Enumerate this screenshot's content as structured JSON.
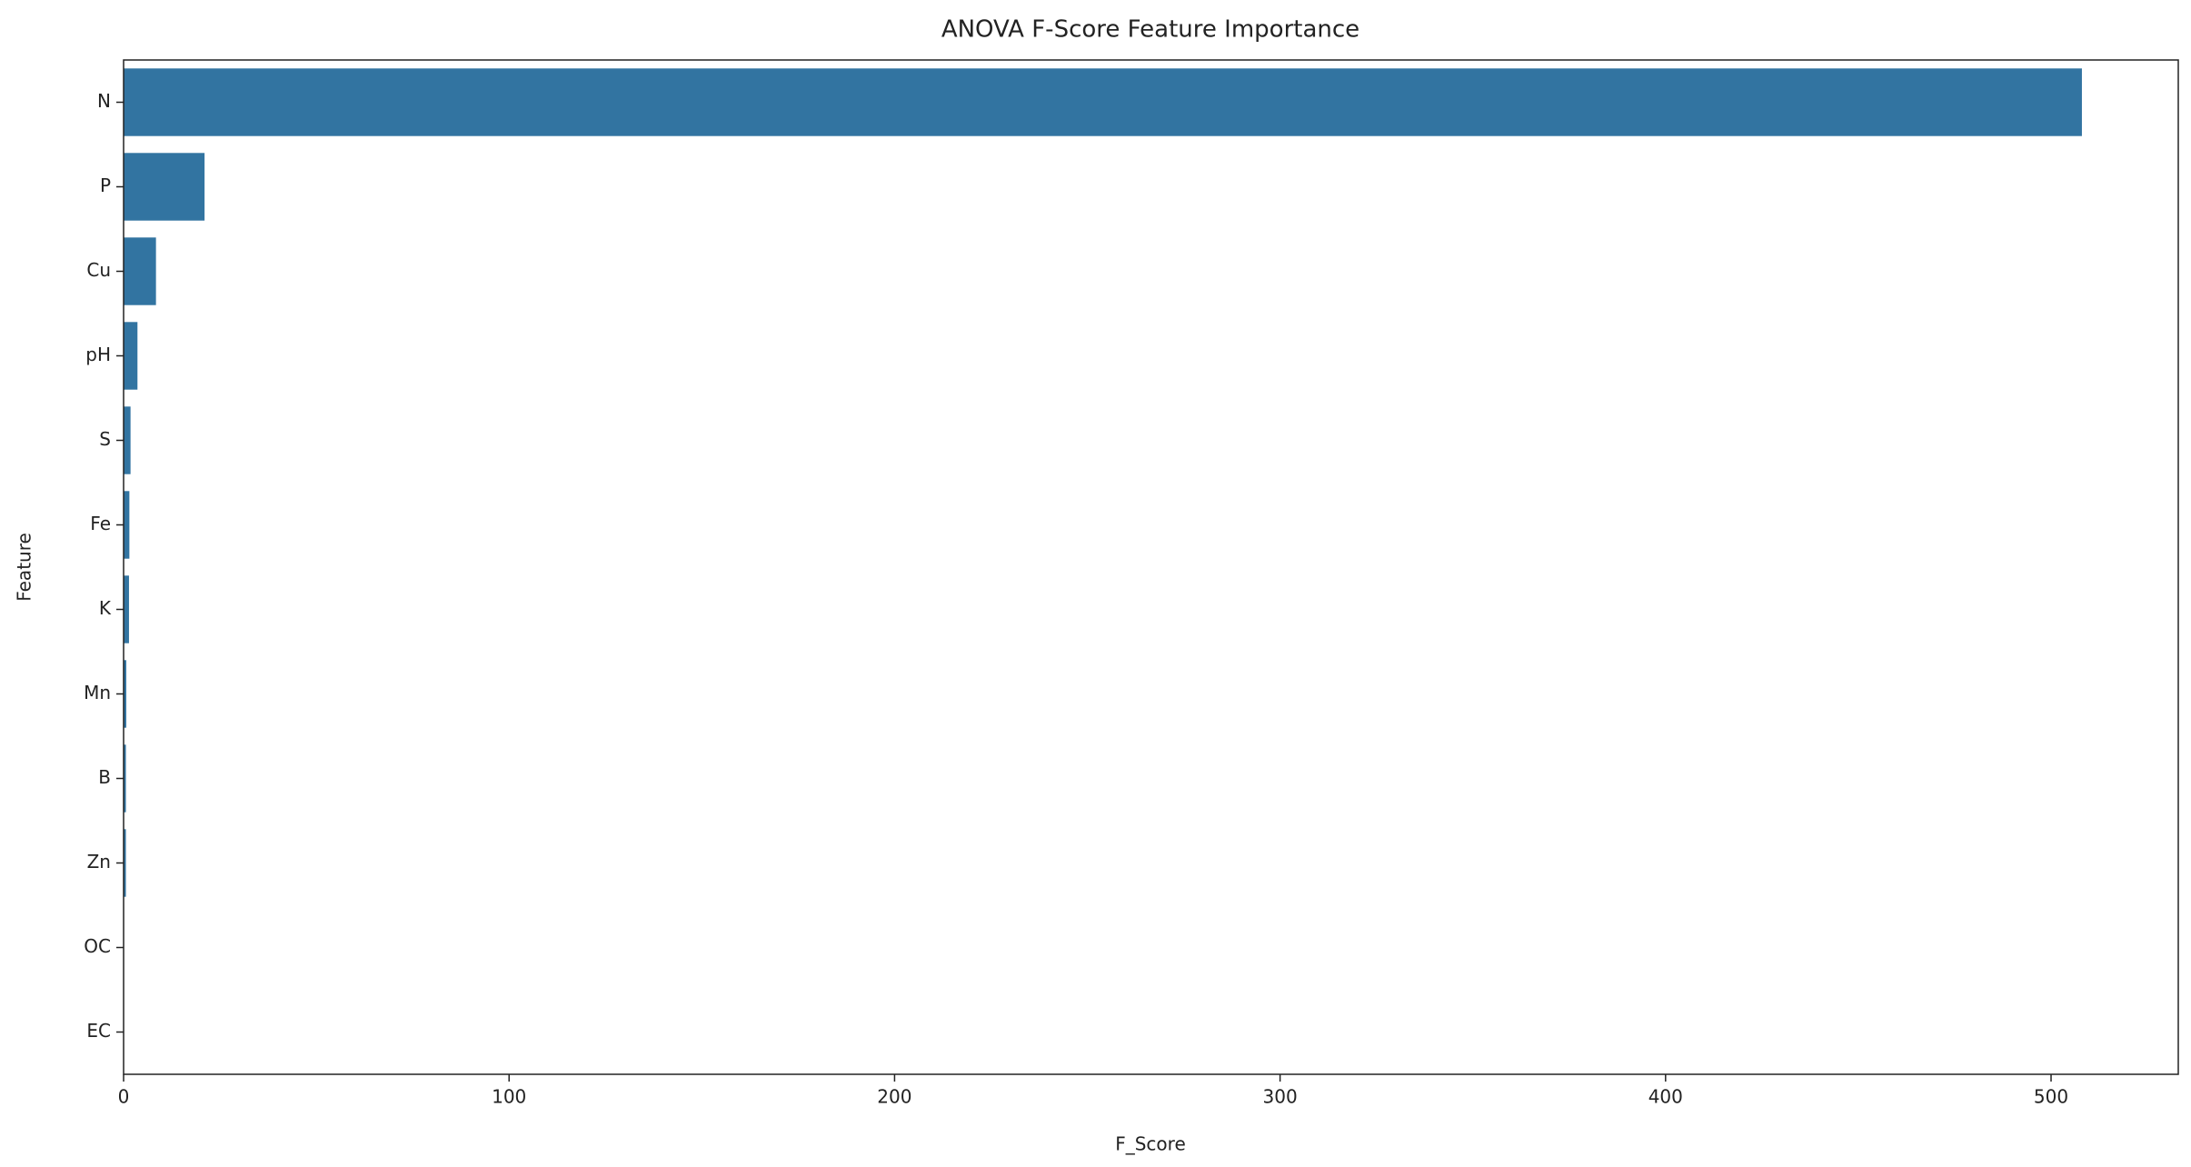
{
  "chart_data": {
    "type": "barh",
    "title": "ANOVA F-Score Feature Importance",
    "x_label": "F_Score",
    "y_label": "Feature",
    "categories": [
      "N",
      "P",
      "Cu",
      "pH",
      "S",
      "Fe",
      "K",
      "Mn",
      "B",
      "Zn",
      "OC",
      "EC"
    ],
    "values": [
      508,
      21,
      8.4,
      3.6,
      1.8,
      1.5,
      1.4,
      0.7,
      0.6,
      0.6,
      0.05,
      0.02
    ],
    "color": "#3274a1",
    "xlim": [
      0,
      533
    ],
    "xticks": [
      0,
      100,
      200,
      300,
      400,
      500
    ],
    "grid": false
  }
}
